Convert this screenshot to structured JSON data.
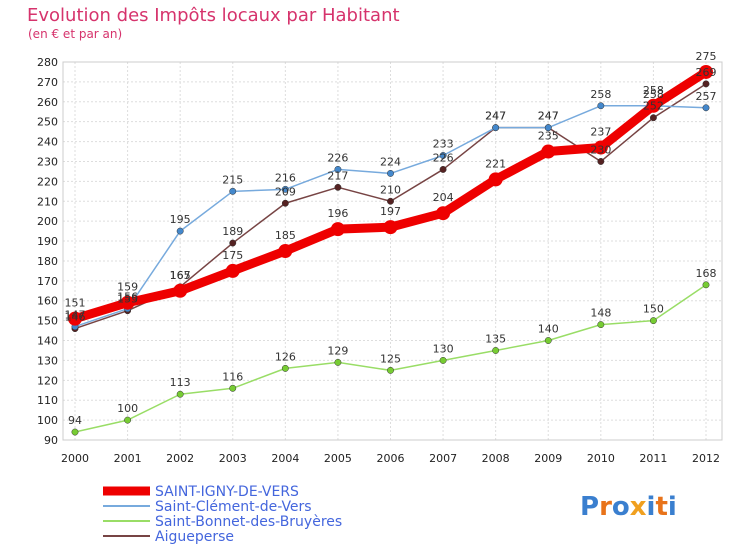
{
  "chart_data": {
    "type": "line",
    "title": "Evolution des Impôts locaux par Habitant",
    "subtitle": "(en € et par an)",
    "x": [
      "2000",
      "2001",
      "2002",
      "2003",
      "2004",
      "2005",
      "2006",
      "2007",
      "2008",
      "2009",
      "2010",
      "2011",
      "2012"
    ],
    "ylim": [
      90,
      280
    ],
    "yticks": [
      90,
      100,
      110,
      120,
      130,
      140,
      150,
      160,
      170,
      180,
      190,
      200,
      210,
      220,
      230,
      240,
      250,
      260,
      270,
      280
    ],
    "grid": true,
    "legend_position": "bottom-left",
    "series": [
      {
        "name": "Saint-Bonnet-des-Bruyères",
        "color": "#99dd66",
        "marker": "#77cc33",
        "width": 1.5,
        "values": [
          94,
          100,
          113,
          116,
          126,
          129,
          125,
          130,
          135,
          140,
          148,
          150,
          168
        ]
      },
      {
        "name": "Aigueperse",
        "color": "#774444",
        "marker": "#552222",
        "width": 1.5,
        "values": [
          146,
          155,
          167,
          189,
          209,
          217,
          210,
          226,
          247,
          247,
          230,
          252,
          269
        ]
      },
      {
        "name": "Saint-Clément-de-Vers",
        "color": "#77aadd",
        "marker": "#4488cc",
        "width": 1.5,
        "values": [
          147,
          156,
          195,
          215,
          216,
          226,
          224,
          233,
          247,
          247,
          258,
          258,
          257
        ]
      },
      {
        "name": "SAINT-IGNY-DE-VERS",
        "color": "#ee0000",
        "marker": "#ee0000",
        "width": 9,
        "values": [
          151,
          159,
          165,
          175,
          185,
          196,
          197,
          204,
          221,
          235,
          237,
          258,
          275
        ]
      }
    ],
    "legend": [
      {
        "name": "SAINT-IGNY-DE-VERS",
        "color": "#ee0000",
        "width": 9
      },
      {
        "name": "Saint-Clément-de-Vers",
        "color": "#77aadd",
        "width": 2
      },
      {
        "name": "Saint-Bonnet-des-Bruyères",
        "color": "#99dd66",
        "width": 2
      },
      {
        "name": "Aigueperse",
        "color": "#774444",
        "width": 2
      }
    ]
  },
  "brand": {
    "logo_text": "Proxiti",
    "letter_colors": [
      "#3a7fcf",
      "#e8731a",
      "#3a7fcf",
      "#f0a020",
      "#3a7fcf",
      "#e8731a",
      "#3a7fcf"
    ]
  }
}
